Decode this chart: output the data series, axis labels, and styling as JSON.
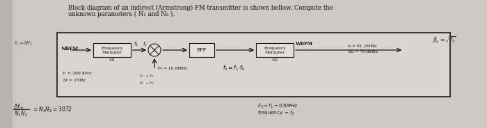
{
  "title_line1": "Block diagram of an indirect (Armstrong) FM transmitter is shown bellow. Compute the",
  "title_line2": "unknown parameters ( N₁ and N₂ ).",
  "bg_color": "#cbc9c2",
  "box_bg": "#d8d6ce",
  "inner_box_bg": "#e2e0d8",
  "border_color": "#1a1a1a",
  "text_dark": "#111111",
  "text_mid": "#2a2a2a",
  "left_strip_color": "#b8b5ae",
  "nbfm_label": "NBFM",
  "wbfm_label": "WBFM",
  "freq_mult1_l1": "Frequency",
  "freq_mult1_l2": "Multiplier",
  "freq_mult2_l1": "Frequency",
  "freq_mult2_l2": "Multiplier",
  "n1_label": "N1",
  "n2_label": "N2",
  "bpf_label": "BPF",
  "fo_label": "F₀ = 10.9MHz",
  "f4_label": "f₄ = 91.2MHz:",
  "df4_label": "Δf₄ = 76.8KHz",
  "f1_label": "f₁ = 200 KHz:",
  "df_label": "Δf = 25Hz",
  "f3_eq": "f₃=f₁· f₀",
  "beta_eq": "β₂ = √f₃",
  "handwritten_left": "f₁=Nf₁",
  "f2_fo_plus": "f₂ +f₀",
  "f2_fo_minus": "f₂ -f₀",
  "bottom_left1": "Δfₘ",
  "bottom_left2": "= N₁N₂ = 3072",
  "bottom_right1": "F₂= f₁ - 0.9MHz",
  "bottom_right2": "frequency=f₃"
}
